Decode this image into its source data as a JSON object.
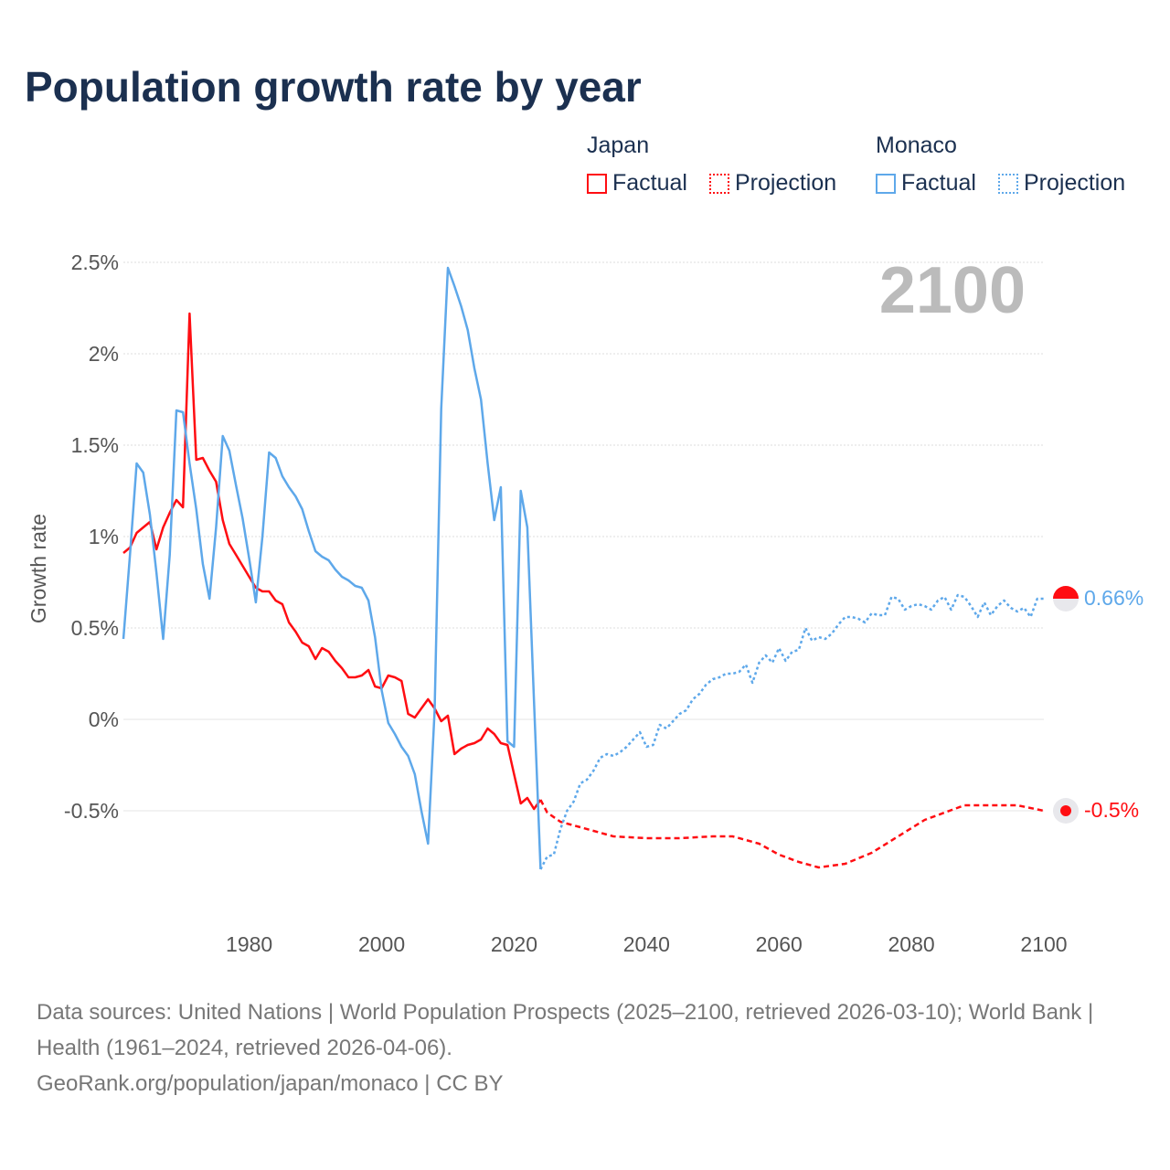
{
  "title": "Population growth rate by year",
  "legend": {
    "groups": [
      {
        "name": "Japan",
        "color": "#ff0d12",
        "items": [
          "Factual",
          "Projection"
        ]
      },
      {
        "name": "Monaco",
        "color": "#5ea8ea",
        "items": [
          "Factual",
          "Projection"
        ]
      }
    ]
  },
  "year_label": "2100",
  "end_labels": {
    "monaco": "0.66%",
    "japan": "-0.5%"
  },
  "footer": {
    "line1": "Data sources: United Nations | World Population Prospects (2025–2100, retrieved 2026-03-10); World Bank | Health (1961–2024, retrieved 2026-04-06).",
    "line2": "GeoRank.org/population/japan/monaco | CC BY"
  },
  "chart_data": {
    "type": "line",
    "title": "Population growth rate by year",
    "xlabel": "",
    "ylabel": "Growth rate",
    "xlim": [
      1961,
      2100
    ],
    "ylim": [
      -1.0,
      2.5
    ],
    "x_ticks": [
      "1980",
      "2000",
      "2020",
      "2040",
      "2060",
      "2080",
      "2100"
    ],
    "y_ticks": [
      "2.5%",
      "2%",
      "1.5%",
      "1%",
      "0.5%",
      "0%",
      "-0.5%"
    ],
    "grid": true,
    "legend_position": "top-right",
    "series": [
      {
        "name": "Japan Factual",
        "color": "#ff0d12",
        "style": "solid",
        "x": [
          1961,
          1962,
          1963,
          1964,
          1965,
          1966,
          1967,
          1968,
          1969,
          1970,
          1971,
          1972,
          1973,
          1974,
          1975,
          1976,
          1977,
          1978,
          1979,
          1980,
          1981,
          1982,
          1983,
          1984,
          1985,
          1986,
          1987,
          1988,
          1989,
          1990,
          1991,
          1992,
          1993,
          1994,
          1995,
          1996,
          1997,
          1998,
          1999,
          2000,
          2001,
          2002,
          2003,
          2004,
          2005,
          2006,
          2007,
          2008,
          2009,
          2010,
          2011,
          2012,
          2013,
          2014,
          2015,
          2016,
          2017,
          2018,
          2019,
          2020,
          2021,
          2022,
          2023,
          2024
        ],
        "y": [
          0.91,
          0.94,
          1.02,
          1.05,
          1.08,
          0.93,
          1.05,
          1.13,
          1.2,
          1.16,
          2.22,
          1.42,
          1.43,
          1.36,
          1.3,
          1.09,
          0.96,
          0.9,
          0.84,
          0.78,
          0.72,
          0.7,
          0.7,
          0.65,
          0.63,
          0.53,
          0.48,
          0.42,
          0.4,
          0.33,
          0.39,
          0.37,
          0.32,
          0.28,
          0.23,
          0.23,
          0.24,
          0.27,
          0.18,
          0.17,
          0.24,
          0.23,
          0.21,
          0.03,
          0.01,
          0.06,
          0.11,
          0.06,
          -0.01,
          0.02,
          -0.19,
          -0.16,
          -0.14,
          -0.13,
          -0.11,
          -0.05,
          -0.08,
          -0.13,
          -0.14,
          -0.3,
          -0.46,
          -0.43,
          -0.49,
          -0.44
        ]
      },
      {
        "name": "Japan Projection",
        "color": "#ff0d12",
        "style": "dashed",
        "x": [
          2024,
          2025,
          2027,
          2030,
          2035,
          2040,
          2045,
          2050,
          2053,
          2057,
          2060,
          2063,
          2066,
          2070,
          2074,
          2078,
          2082,
          2085,
          2088,
          2092,
          2096,
          2100
        ],
        "y": [
          -0.44,
          -0.51,
          -0.56,
          -0.59,
          -0.64,
          -0.65,
          -0.65,
          -0.64,
          -0.64,
          -0.68,
          -0.74,
          -0.78,
          -0.81,
          -0.79,
          -0.73,
          -0.64,
          -0.55,
          -0.51,
          -0.47,
          -0.47,
          -0.47,
          -0.5
        ]
      },
      {
        "name": "Monaco Factual",
        "color": "#5ea8ea",
        "style": "solid",
        "x": [
          1961,
          1962,
          1963,
          1964,
          1965,
          1966,
          1967,
          1968,
          1969,
          1970,
          1971,
          1972,
          1973,
          1974,
          1975,
          1976,
          1977,
          1978,
          1979,
          1980,
          1981,
          1982,
          1983,
          1984,
          1985,
          1986,
          1987,
          1988,
          1989,
          1990,
          1991,
          1992,
          1993,
          1994,
          1995,
          1996,
          1997,
          1998,
          1999,
          2000,
          2001,
          2002,
          2003,
          2004,
          2005,
          2006,
          2007,
          2008,
          2009,
          2010,
          2011,
          2012,
          2013,
          2014,
          2015,
          2016,
          2017,
          2018,
          2019,
          2020,
          2021,
          2022,
          2023,
          2024
        ],
        "y": [
          0.44,
          0.9,
          1.4,
          1.35,
          1.12,
          0.8,
          0.44,
          0.9,
          1.69,
          1.68,
          1.4,
          1.15,
          0.85,
          0.66,
          1.05,
          1.55,
          1.47,
          1.28,
          1.1,
          0.88,
          0.64,
          1.0,
          1.46,
          1.43,
          1.33,
          1.27,
          1.22,
          1.15,
          1.03,
          0.92,
          0.89,
          0.87,
          0.82,
          0.78,
          0.76,
          0.73,
          0.72,
          0.65,
          0.45,
          0.16,
          -0.02,
          -0.08,
          -0.15,
          -0.2,
          -0.3,
          -0.5,
          -0.68,
          0.05,
          1.7,
          2.47,
          2.37,
          2.26,
          2.13,
          1.92,
          1.75,
          1.4,
          1.09,
          1.27,
          -0.12,
          -0.15,
          1.25,
          1.05,
          0.1,
          -0.82
        ]
      },
      {
        "name": "Monaco Projection",
        "color": "#5ea8ea",
        "style": "dotted",
        "x": [
          2024,
          2025,
          2026,
          2027,
          2028,
          2029,
          2030,
          2031,
          2032,
          2033,
          2034,
          2035,
          2036,
          2037,
          2038,
          2039,
          2040,
          2041,
          2042,
          2043,
          2044,
          2045,
          2046,
          2047,
          2048,
          2049,
          2050,
          2051,
          2052,
          2053,
          2054,
          2055,
          2056,
          2057,
          2058,
          2059,
          2060,
          2061,
          2062,
          2063,
          2064,
          2065,
          2066,
          2067,
          2068,
          2069,
          2070,
          2071,
          2072,
          2073,
          2074,
          2075,
          2076,
          2077,
          2078,
          2079,
          2080,
          2081,
          2082,
          2083,
          2084,
          2085,
          2086,
          2087,
          2088,
          2089,
          2090,
          2091,
          2092,
          2093,
          2094,
          2095,
          2096,
          2097,
          2098,
          2099,
          2100
        ],
        "y": [
          -0.82,
          -0.75,
          -0.74,
          -0.6,
          -0.5,
          -0.45,
          -0.35,
          -0.33,
          -0.28,
          -0.21,
          -0.19,
          -0.2,
          -0.18,
          -0.15,
          -0.11,
          -0.07,
          -0.15,
          -0.14,
          -0.03,
          -0.05,
          -0.01,
          0.03,
          0.05,
          0.11,
          0.14,
          0.19,
          0.22,
          0.23,
          0.25,
          0.25,
          0.26,
          0.3,
          0.2,
          0.31,
          0.35,
          0.31,
          0.39,
          0.32,
          0.37,
          0.38,
          0.5,
          0.43,
          0.45,
          0.44,
          0.47,
          0.52,
          0.56,
          0.56,
          0.55,
          0.53,
          0.58,
          0.57,
          0.57,
          0.67,
          0.66,
          0.6,
          0.62,
          0.63,
          0.62,
          0.6,
          0.65,
          0.67,
          0.6,
          0.68,
          0.67,
          0.62,
          0.56,
          0.64,
          0.57,
          0.62,
          0.65,
          0.61,
          0.59,
          0.61,
          0.56,
          0.66,
          0.66
        ]
      }
    ]
  }
}
